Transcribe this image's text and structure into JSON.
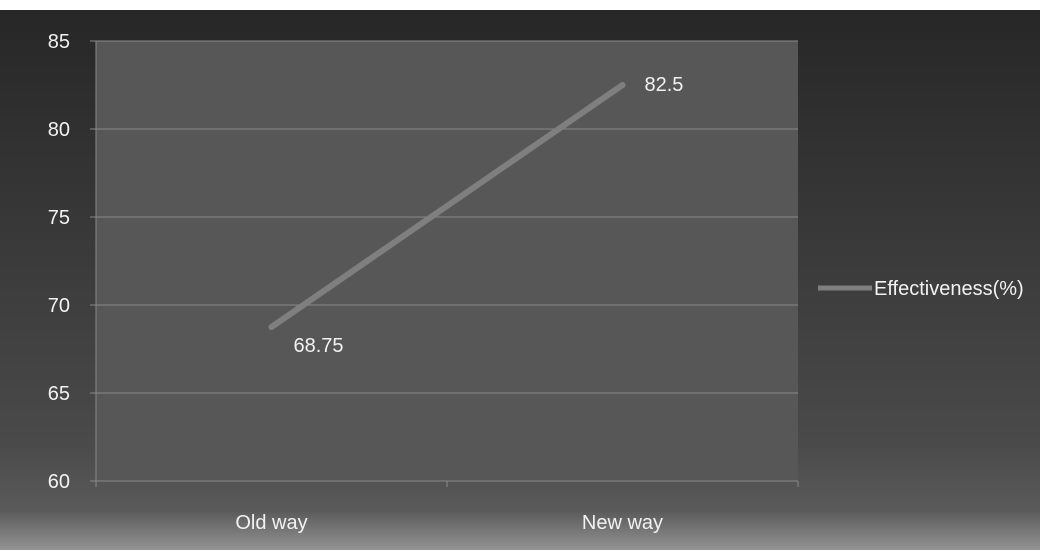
{
  "chart_data": {
    "type": "line",
    "categories": [
      "Old way",
      "New way"
    ],
    "series": [
      {
        "name": "Effectiveness(%)",
        "values": [
          68.75,
          82.5
        ]
      }
    ],
    "data_labels": [
      "68.75",
      "82.5"
    ],
    "title": "",
    "xlabel": "",
    "ylabel": "",
    "ylim": [
      60,
      85
    ],
    "yticks": [
      60,
      65,
      70,
      75,
      80,
      85
    ],
    "ytick_labels": [
      "60",
      "65",
      "70",
      "75",
      "80",
      "85"
    ],
    "grid": true,
    "legend_position": "right",
    "colors": {
      "background": "#3a3a3a",
      "plot_area": "#575757",
      "gridline": "#8a8a8a",
      "line": "#7f7f7f",
      "text": "#f2f2f2"
    }
  }
}
